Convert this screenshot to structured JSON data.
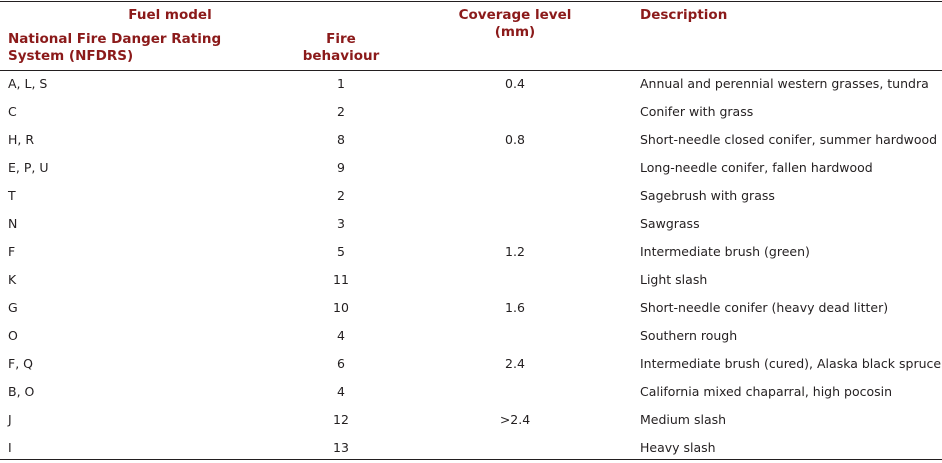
{
  "header": {
    "fuel_model": "Fuel model",
    "nfdrs": "National Fire Danger Rating System (NFDRS)",
    "fire_behaviour": "Fire behaviour",
    "coverage_level": "Coverage level (mm)",
    "description": "Description"
  },
  "colors": {
    "header_text": "#8b1a1a",
    "body_text": "#231f20",
    "rule": "#231f20"
  },
  "rows": [
    {
      "nfdrs": "A, L, S",
      "fire": "1",
      "coverage": "0.4",
      "description": "Annual and perennial western grasses, tundra"
    },
    {
      "nfdrs": "C",
      "fire": "2",
      "coverage": "",
      "description": "Conifer with grass"
    },
    {
      "nfdrs": "H, R",
      "fire": "8",
      "coverage": "0.8",
      "description": "Short-needle closed conifer, summer hardwood"
    },
    {
      "nfdrs": "E, P, U",
      "fire": "9",
      "coverage": "",
      "description": "Long-needle conifer, fallen hardwood"
    },
    {
      "nfdrs": "T",
      "fire": "2",
      "coverage": "",
      "description": "Sagebrush with grass"
    },
    {
      "nfdrs": "N",
      "fire": "3",
      "coverage": "",
      "description": "Sawgrass"
    },
    {
      "nfdrs": "F",
      "fire": "5",
      "coverage": "1.2",
      "description": "Intermediate brush (green)"
    },
    {
      "nfdrs": "K",
      "fire": "11",
      "coverage": "",
      "description": "Light slash"
    },
    {
      "nfdrs": "G",
      "fire": "10",
      "coverage": "1.6",
      "description": "Short-needle conifer (heavy dead litter)"
    },
    {
      "nfdrs": "O",
      "fire": "4",
      "coverage": "",
      "description": "Southern rough"
    },
    {
      "nfdrs": "F, Q",
      "fire": "6",
      "coverage": "2.4",
      "description": "Intermediate brush (cured), Alaska black spruce"
    },
    {
      "nfdrs": "B, O",
      "fire": "4",
      "coverage": "",
      "description": "California mixed chaparral, high pocosin"
    },
    {
      "nfdrs": "J",
      "fire": "12",
      "coverage": ">2.4",
      "description": "Medium slash"
    },
    {
      "nfdrs": "I",
      "fire": "13",
      "coverage": "",
      "description": "Heavy slash"
    }
  ]
}
